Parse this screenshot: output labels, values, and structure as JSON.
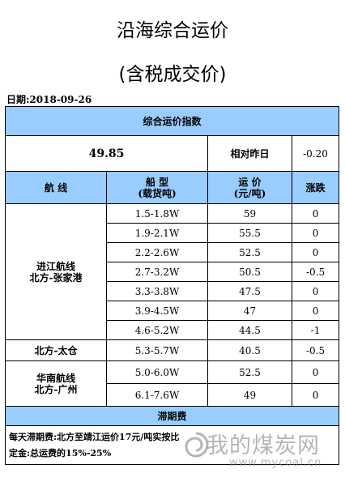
{
  "header": {
    "title": "沿海综合运价",
    "subtitle": "(含税成交价)",
    "date": "日期:2018-09-26"
  },
  "index_section": {
    "label": "综合运价指数",
    "value": "49.85",
    "compare_label": "相对昨日",
    "change": "-0.20"
  },
  "table_header": {
    "route": "航  线",
    "ship_type_line1": "船  型",
    "ship_type_line2": "(载货吨)",
    "freight_line1": "运  价",
    "freight_line2": "(元/吨)",
    "change": "涨跌"
  },
  "groups": [
    {
      "route_line1": "进江航线",
      "route_line2": "北方-张家港",
      "rows": [
        {
          "ship": "1.5-1.8W",
          "price": "59",
          "change": "0"
        },
        {
          "ship": "1.9-2.1W",
          "price": "55.5",
          "change": "0"
        },
        {
          "ship": "2.2-2.6W",
          "price": "52.5",
          "change": "0"
        },
        {
          "ship": "2.7-3.2W",
          "price": "50.5",
          "change": "-0.5"
        },
        {
          "ship": "3.3-3.8W",
          "price": "47.5",
          "change": "0"
        },
        {
          "ship": "3.9-4.5W",
          "price": "47",
          "change": "0"
        },
        {
          "ship": "4.6-5.2W",
          "price": "44.5",
          "change": "-1"
        }
      ]
    },
    {
      "route_line1": "北方-太仓",
      "route_line2": "",
      "rows": [
        {
          "ship": "5.3-5.7W",
          "price": "40.5",
          "change": "-0.5"
        }
      ]
    },
    {
      "route_line1": "华南航线",
      "route_line2": "北方-广州",
      "rows": [
        {
          "ship": "5.0-6.0W",
          "price": "52.5",
          "change": "0"
        },
        {
          "ship": "6.1-7.6W",
          "price": "49",
          "change": "0"
        }
      ]
    }
  ],
  "demurrage": {
    "label": "滞期费",
    "line1": "每天滞期费:北方至靖江运价17元/吨实按比",
    "line2": "定金:总运费的15%-25%"
  },
  "watermark": {
    "text": "我的煤炭网",
    "url": "www.mycoal.cn"
  }
}
